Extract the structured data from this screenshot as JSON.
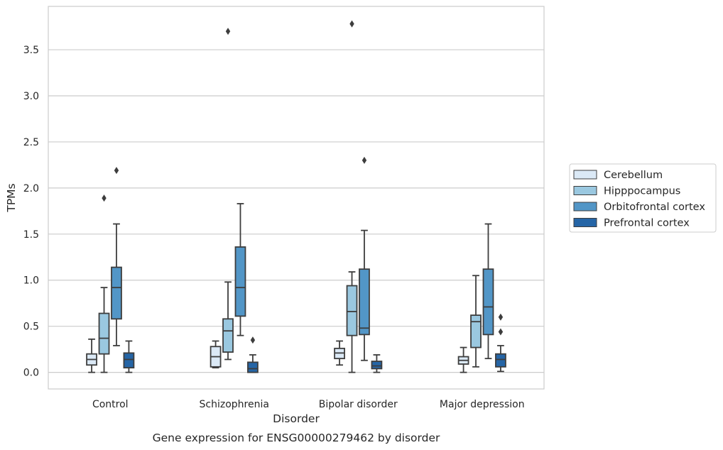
{
  "chart_data": {
    "type": "box",
    "xlabel": "Disorder",
    "ylabel": "TPMs",
    "caption": "Gene expression for ENSG00000279462 by disorder",
    "ylim": [
      -0.18,
      3.97
    ],
    "yticks": [
      "0.0",
      "0.5",
      "1.0",
      "1.5",
      "2.0",
      "2.5",
      "3.0",
      "3.5"
    ],
    "grid": "horizontal",
    "legend_position": "right",
    "categories": [
      "Control",
      "Schizophrenia",
      "Bipolar disorder",
      "Major depression"
    ],
    "series": [
      {
        "name": "Cerebellum",
        "color": "#dbe9f6",
        "boxes": [
          {
            "whisker_low": 0.0,
            "q1": 0.08,
            "median": 0.14,
            "q3": 0.2,
            "whisker_high": 0.36,
            "outliers": []
          },
          {
            "whisker_low": 0.05,
            "q1": 0.06,
            "median": 0.17,
            "q3": 0.28,
            "whisker_high": 0.34,
            "outliers": []
          },
          {
            "whisker_low": 0.08,
            "q1": 0.15,
            "median": 0.21,
            "q3": 0.26,
            "whisker_high": 0.34,
            "outliers": []
          },
          {
            "whisker_low": 0.0,
            "q1": 0.09,
            "median": 0.13,
            "q3": 0.17,
            "whisker_high": 0.27,
            "outliers": []
          }
        ]
      },
      {
        "name": "Hipppocampus",
        "color": "#9ac8e0",
        "boxes": [
          {
            "whisker_low": 0.0,
            "q1": 0.2,
            "median": 0.37,
            "q3": 0.64,
            "whisker_high": 0.92,
            "outliers": [
              1.89
            ]
          },
          {
            "whisker_low": 0.14,
            "q1": 0.22,
            "median": 0.45,
            "q3": 0.58,
            "whisker_high": 0.98,
            "outliers": [
              3.7
            ]
          },
          {
            "whisker_low": 0.0,
            "q1": 0.4,
            "median": 0.66,
            "q3": 0.94,
            "whisker_high": 1.09,
            "outliers": [
              3.78
            ]
          },
          {
            "whisker_low": 0.06,
            "q1": 0.27,
            "median": 0.55,
            "q3": 0.62,
            "whisker_high": 1.05,
            "outliers": []
          }
        ]
      },
      {
        "name": "Orbitofrontal cortex",
        "color": "#5296c7",
        "boxes": [
          {
            "whisker_low": 0.29,
            "q1": 0.58,
            "median": 0.92,
            "q3": 1.14,
            "whisker_high": 1.61,
            "outliers": [
              2.19
            ]
          },
          {
            "whisker_low": 0.4,
            "q1": 0.61,
            "median": 0.92,
            "q3": 1.36,
            "whisker_high": 1.83,
            "outliers": []
          },
          {
            "whisker_low": 0.13,
            "q1": 0.41,
            "median": 0.48,
            "q3": 1.12,
            "whisker_high": 1.54,
            "outliers": [
              2.3
            ]
          },
          {
            "whisker_low": 0.15,
            "q1": 0.41,
            "median": 0.71,
            "q3": 1.12,
            "whisker_high": 1.61,
            "outliers": []
          }
        ]
      },
      {
        "name": "Prefrontal cortex",
        "color": "#2565a6",
        "boxes": [
          {
            "whisker_low": 0.0,
            "q1": 0.05,
            "median": 0.14,
            "q3": 0.21,
            "whisker_high": 0.34,
            "outliers": []
          },
          {
            "whisker_low": 0.0,
            "q1": 0.0,
            "median": 0.04,
            "q3": 0.11,
            "whisker_high": 0.19,
            "outliers": [
              0.35
            ]
          },
          {
            "whisker_low": 0.0,
            "q1": 0.04,
            "median": 0.07,
            "q3": 0.12,
            "whisker_high": 0.19,
            "outliers": []
          },
          {
            "whisker_low": 0.01,
            "q1": 0.06,
            "median": 0.14,
            "q3": 0.2,
            "whisker_high": 0.29,
            "outliers": [
              0.44,
              0.6
            ]
          }
        ]
      }
    ]
  }
}
